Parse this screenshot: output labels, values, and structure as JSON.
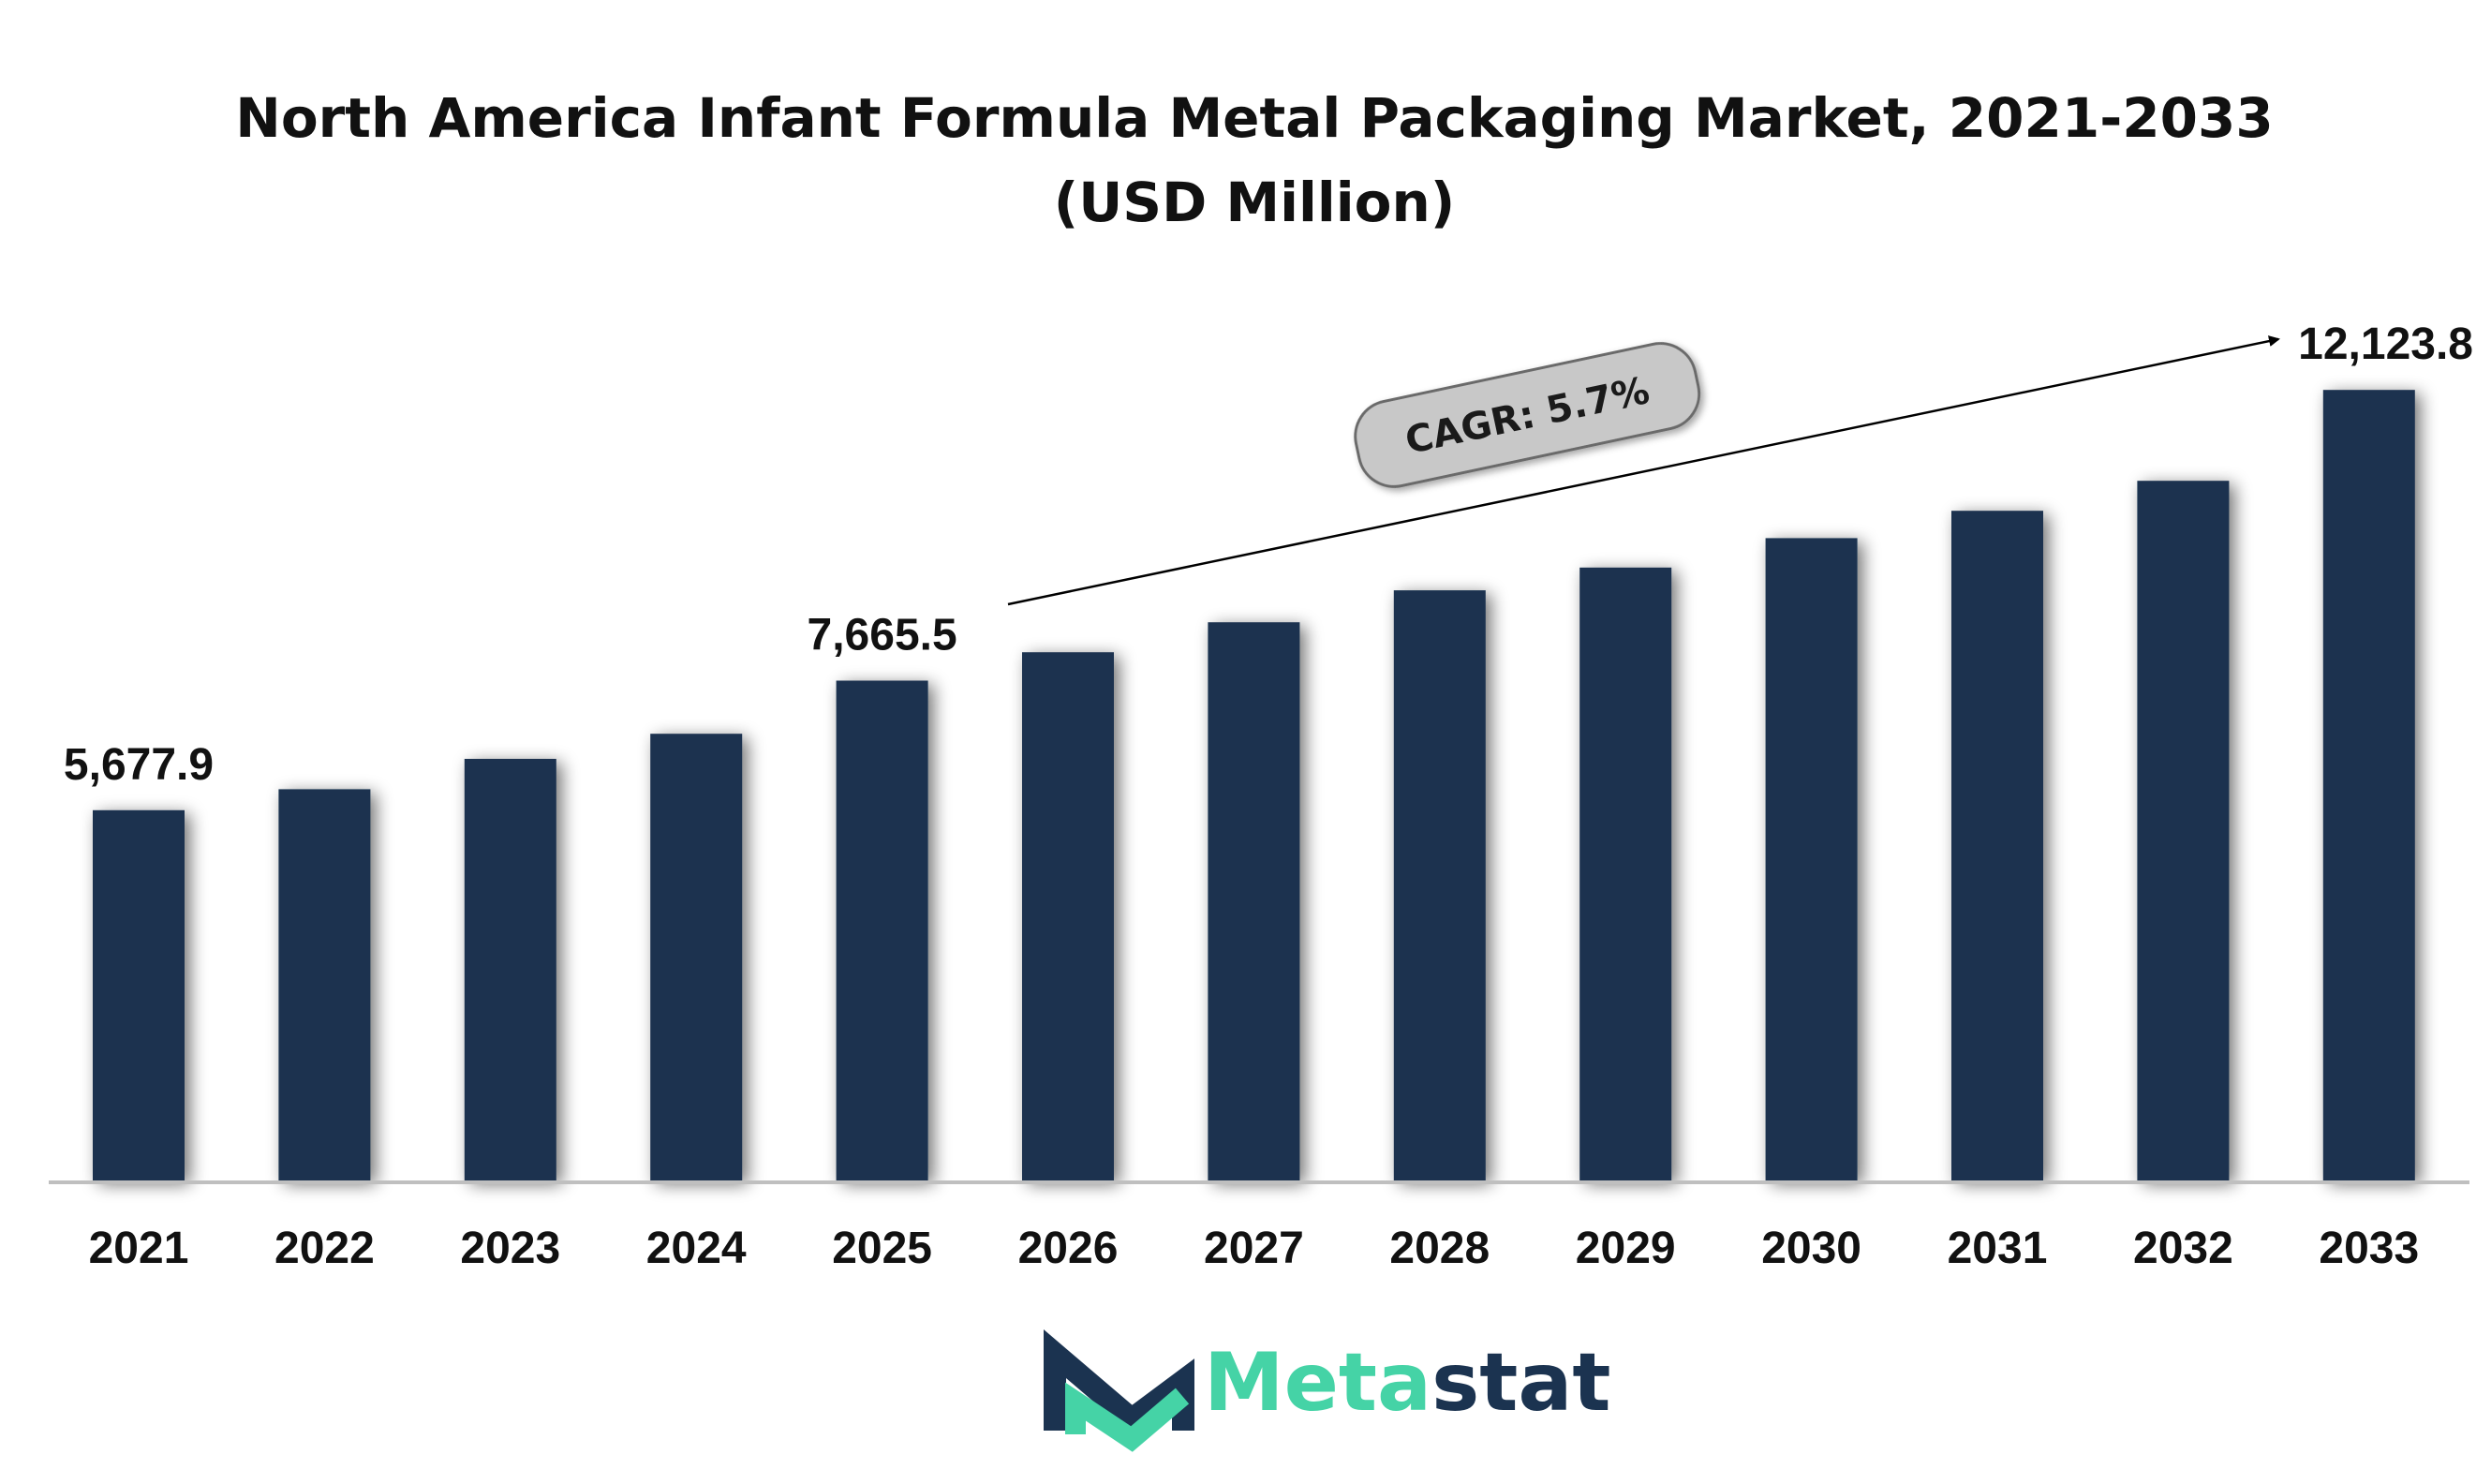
{
  "chart_data": {
    "type": "bar",
    "title": "North America Infant Formula Metal Packaging Market, 2021-2033",
    "subtitle": "(USD Million)",
    "categories": [
      "2021",
      "2022",
      "2023",
      "2024",
      "2025",
      "2026",
      "2027",
      "2028",
      "2029",
      "2030",
      "2031",
      "2032",
      "2033"
    ],
    "values": [
      5677.9,
      6000,
      6465,
      6850,
      7665.5,
      8100,
      8560,
      9050,
      9400,
      9850,
      10270,
      10730,
      12123.8
    ],
    "data_labels": [
      {
        "category": "2021",
        "text": "5,677.9"
      },
      {
        "category": "2025",
        "text": "7,665.5"
      },
      {
        "category": "2033",
        "text": "12,123.8"
      }
    ],
    "annotation": "CAGR: 5.7%",
    "xlabel": "",
    "ylabel": "",
    "ylim": [
      0,
      13000
    ],
    "grid": false,
    "legend": "none",
    "colors": {
      "bar": "#1b3350",
      "axis": "#bfbfbf",
      "badge": "#c8c8c8",
      "badge_stroke": "#6b6b6b"
    }
  },
  "logo": {
    "text_primary": "Meta",
    "text_secondary": "stat",
    "colors": {
      "primary": "#45d3a6",
      "secondary": "#1b3350"
    }
  }
}
